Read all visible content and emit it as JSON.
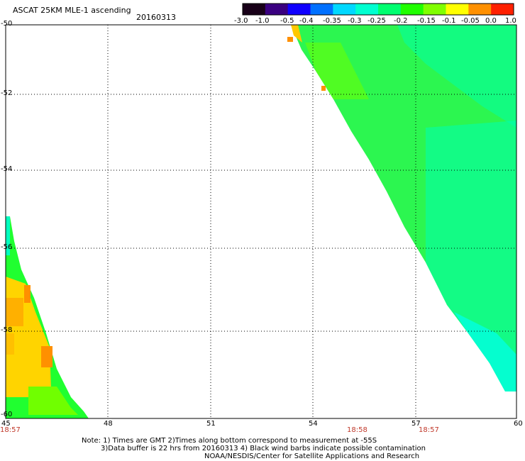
{
  "header": {
    "title": "ASCAT 25KM MLE-1 ascending",
    "date": "20160313"
  },
  "colorbar": {
    "labels": [
      "-3.0",
      "-1.0",
      "-0.5",
      "-0.4",
      "-0.35",
      "-0.3",
      "-0.25",
      "-0.2",
      "-0.15",
      "-0.1",
      "-0.05",
      "0.0",
      "1.0"
    ],
    "colors": [
      "#180018",
      "#3a0080",
      "#1000ff",
      "#0070ff",
      "#00d8ff",
      "#00ffd0",
      "#00ff70",
      "#20ff00",
      "#80ff00",
      "#ffff00",
      "#ff9000",
      "#ff2000"
    ]
  },
  "axes": {
    "x_ticks": [
      "45",
      "48",
      "51",
      "54",
      "57",
      "60"
    ],
    "y_ticks": [
      "-50",
      "-52",
      "-54",
      "-56",
      "-58",
      "-60"
    ]
  },
  "pass_times": [
    "18:57",
    "18:58",
    "18:57"
  ],
  "notes": {
    "line1": "Note: 1) Times are GMT 2)Times along bottom correspond to measurement at -55S",
    "line2": "3)Data buffer is 22 hrs from 20160313 4) Black wind barbs indicate possible contamination",
    "line3": "NOAA/NESDIS/Center for Satellite Applications and Research"
  },
  "swaths": {
    "right_swath_dominant": "#00ff60",
    "left_swath_dominant": "#ffd000"
  }
}
